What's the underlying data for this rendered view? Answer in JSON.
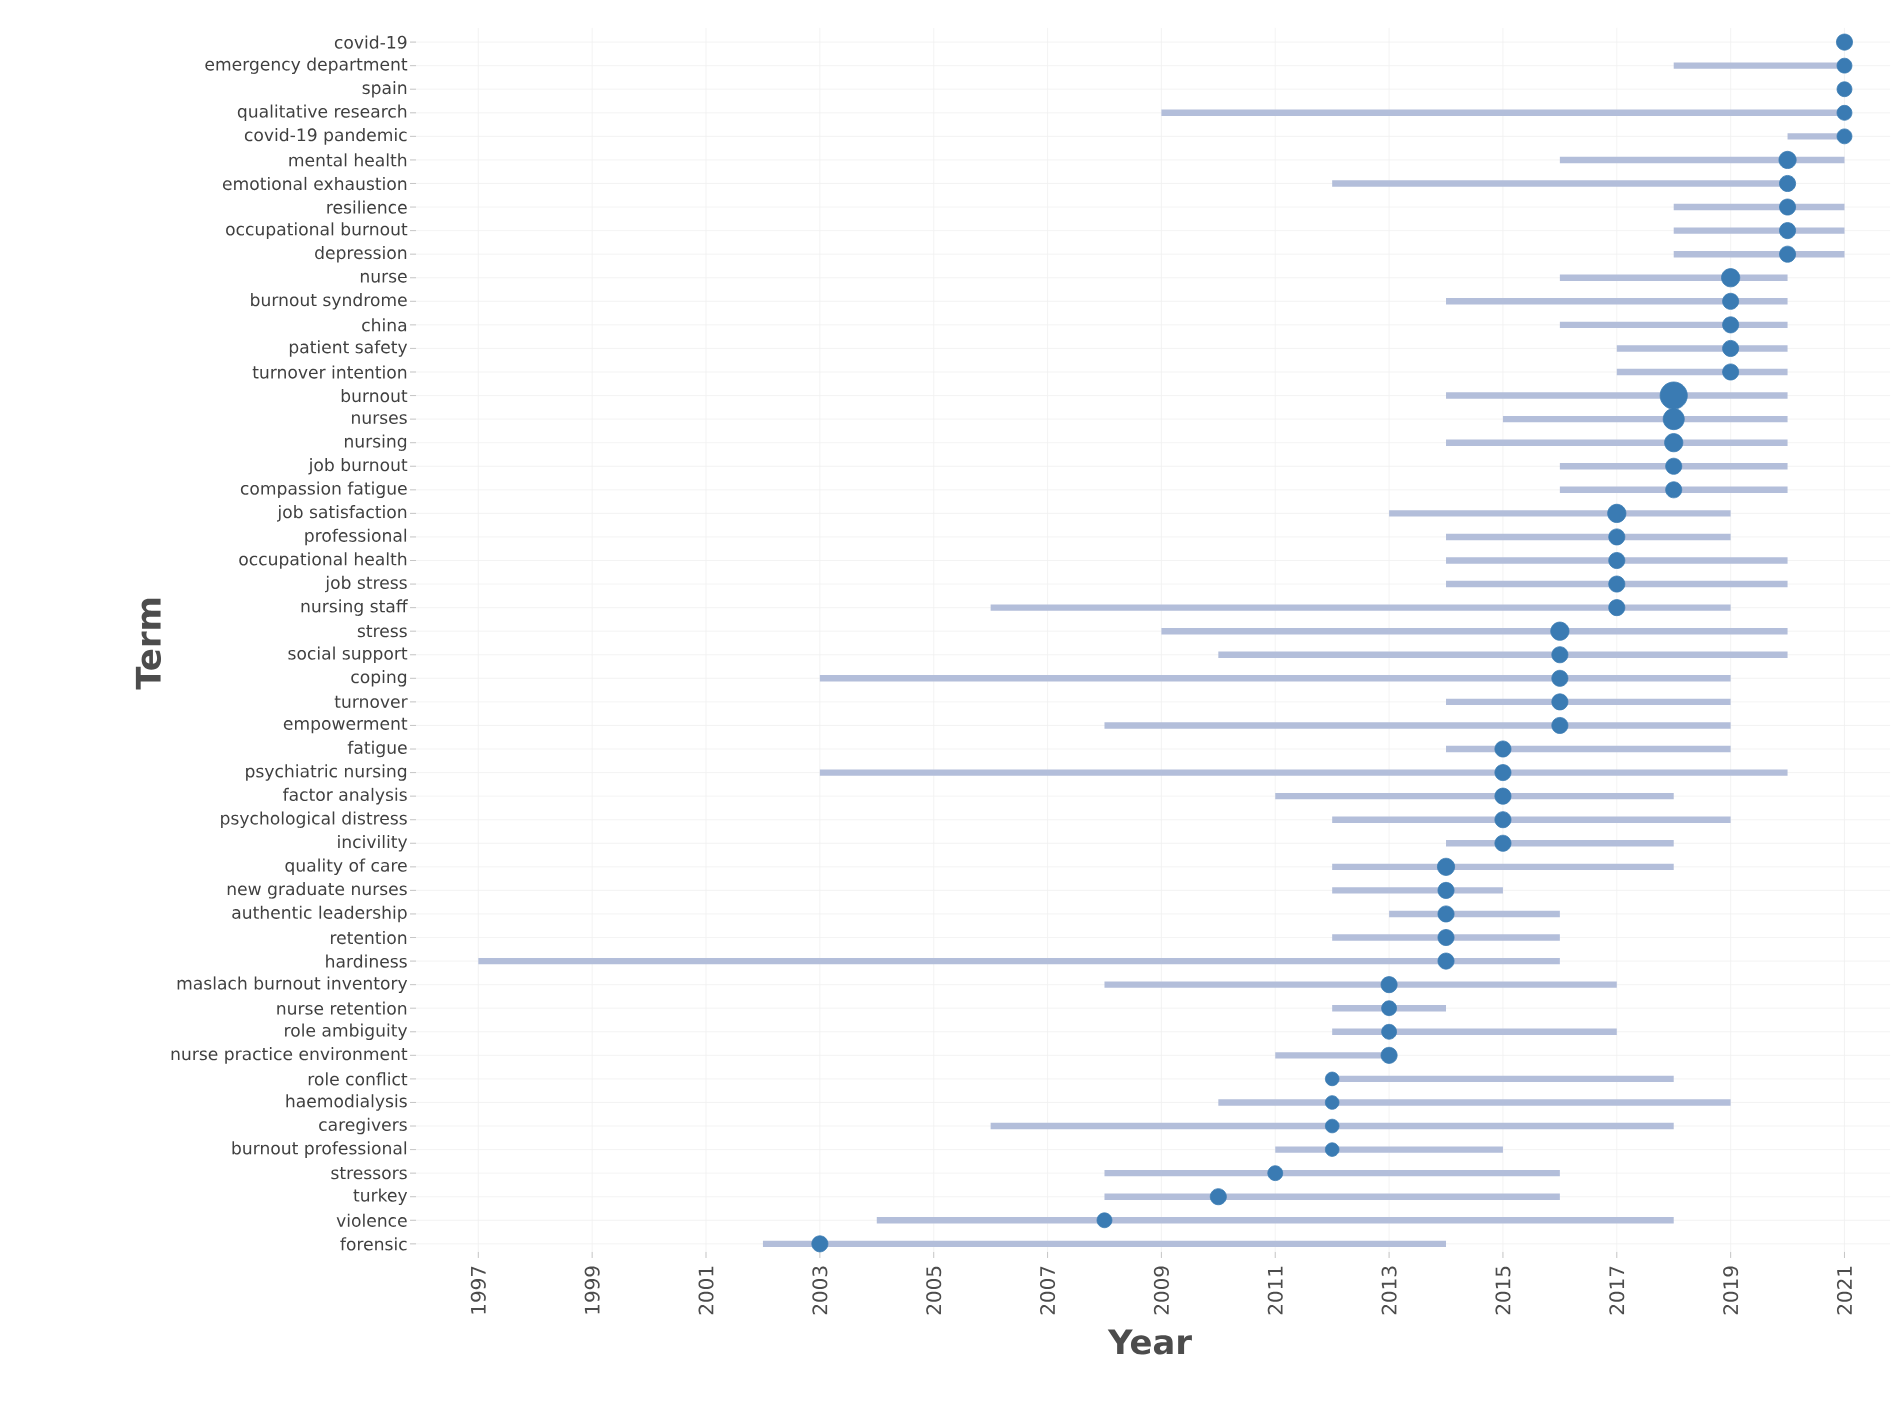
{
  "chart_data": {
    "type": "bubble",
    "orientation": "horizontal",
    "xlabel": "Year",
    "ylabel": "Term",
    "color": "#3a7bb3",
    "grid": true,
    "categories": [
      "covid-19",
      "emergency department",
      "spain",
      "qualitative research",
      "covid-19 pandemic",
      "mental health",
      "emotional exhaustion",
      "resilience",
      "occupational burnout",
      "depression",
      "nurse",
      "burnout syndrome",
      "china",
      "patient safety",
      "turnover intention",
      "burnout",
      "nurses",
      "nursing",
      "job burnout",
      "compassion fatigue",
      "job satisfaction",
      "professional",
      "occupational health",
      "job stress",
      "nursing staff",
      "stress",
      "social support",
      "coping",
      "turnover",
      "empowerment",
      "fatigue",
      "psychiatric nursing",
      "factor analysis",
      "psychological distress",
      "incivility",
      "quality of care",
      "new graduate nurses",
      "authentic leadership",
      "retention",
      "hardiness",
      "maslach burnout inventory",
      "nurse retention",
      "role ambiguity",
      "nurse practice environment",
      "role conflict",
      "haemodialysis",
      "caregivers",
      "burnout professional",
      "stressors",
      "turkey",
      "violence",
      "forensic"
    ],
    "values": [
      2021,
      2021,
      2021,
      2021,
      2021,
      2020,
      2020,
      2020,
      2020,
      2020,
      2019,
      2019,
      2019,
      2019,
      2019,
      2018,
      2018,
      2018,
      2018,
      2018,
      2017,
      2017,
      2017,
      2017,
      2017,
      2016,
      2016,
      2016,
      2016,
      2016,
      2015,
      2015,
      2015,
      2015,
      2015,
      2014,
      2014,
      2014,
      2014,
      2014,
      2013,
      2013,
      2013,
      2013,
      2012,
      2012,
      2012,
      2012,
      2011,
      2010,
      2008,
      2003
    ],
    "errors": [
      [
        2021,
        2021
      ],
      [
        2018,
        2021
      ],
      [
        2021,
        2021
      ],
      [
        2009,
        2021
      ],
      [
        2020,
        2021
      ],
      [
        2016,
        2021
      ],
      [
        2012,
        2020
      ],
      [
        2018,
        2021
      ],
      [
        2018,
        2021
      ],
      [
        2018,
        2021
      ],
      [
        2016,
        2020
      ],
      [
        2014,
        2020
      ],
      [
        2016,
        2020
      ],
      [
        2017,
        2020
      ],
      [
        2017,
        2020
      ],
      [
        2014,
        2020
      ],
      [
        2015,
        2020
      ],
      [
        2014,
        2020
      ],
      [
        2016,
        2020
      ],
      [
        2016,
        2020
      ],
      [
        2013,
        2019
      ],
      [
        2014,
        2019
      ],
      [
        2014,
        2020
      ],
      [
        2014,
        2020
      ],
      [
        2006,
        2019
      ],
      [
        2009,
        2020
      ],
      [
        2010,
        2020
      ],
      [
        2003,
        2019
      ],
      [
        2014,
        2019
      ],
      [
        2008,
        2019
      ],
      [
        2014,
        2019
      ],
      [
        2003,
        2020
      ],
      [
        2011,
        2018
      ],
      [
        2012,
        2019
      ],
      [
        2014,
        2018
      ],
      [
        2012,
        2018
      ],
      [
        2012,
        2015
      ],
      [
        2013,
        2016
      ],
      [
        2012,
        2016
      ],
      [
        1997,
        2016
      ],
      [
        2008,
        2017
      ],
      [
        2012,
        2014
      ],
      [
        2012,
        2017
      ],
      [
        2011,
        2013
      ],
      [
        2012,
        2018
      ],
      [
        2010,
        2019
      ],
      [
        2006,
        2018
      ],
      [
        2011,
        2015
      ],
      [
        2008,
        2016
      ],
      [
        2008,
        2016
      ],
      [
        2004,
        2018
      ],
      [
        2002,
        2014
      ]
    ],
    "sizes": [
      0.35,
      0.3,
      0.3,
      0.3,
      0.3,
      0.4,
      0.35,
      0.35,
      0.35,
      0.35,
      0.45,
      0.35,
      0.35,
      0.35,
      0.35,
      1,
      0.6,
      0.45,
      0.35,
      0.35,
      0.45,
      0.35,
      0.35,
      0.35,
      0.35,
      0.45,
      0.35,
      0.35,
      0.35,
      0.35,
      0.35,
      0.35,
      0.35,
      0.35,
      0.35,
      0.4,
      0.35,
      0.35,
      0.35,
      0.35,
      0.35,
      0.3,
      0.3,
      0.35,
      0.25,
      0.25,
      0.25,
      0.25,
      0.3,
      0.35,
      0.3,
      0.35
    ],
    "xlim": [
      1995.8,
      2021.8
    ],
    "xticks": [
      1997,
      1999,
      2001,
      2003,
      2005,
      2007,
      2009,
      2011,
      2013,
      2015,
      2017,
      2019,
      2021
    ]
  }
}
